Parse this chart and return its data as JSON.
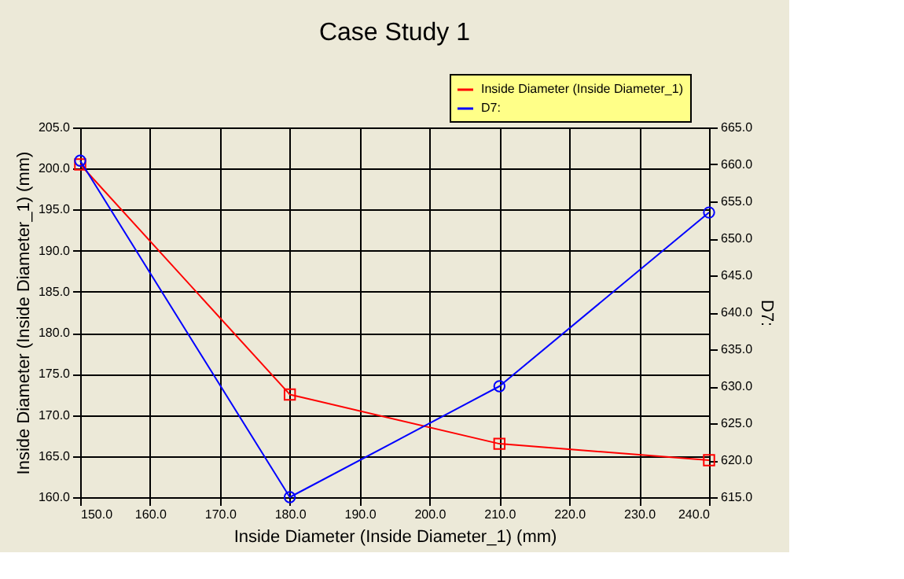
{
  "chart_data": {
    "type": "line",
    "title": "Case Study 1",
    "xlabel": "Inside Diameter (Inside Diameter_1) (mm)",
    "ylabel": "Inside Diameter (Inside Diameter_1) (mm)",
    "y2label": "D7:",
    "x": [
      150,
      180,
      210,
      240
    ],
    "series": [
      {
        "name": "Inside Diameter (Inside Diameter_1)",
        "color": "#ff0000",
        "marker": "square",
        "values": [
          200.5,
          172.5,
          166.5,
          164.5
        ]
      },
      {
        "name": "D7:",
        "color": "#0000ff",
        "marker": "circle",
        "axis": "y2",
        "values": [
          660.5,
          615.0,
          630.0,
          653.5
        ]
      }
    ],
    "xlim": [
      150,
      240
    ],
    "xticks": [
      {
        "value": 150,
        "label": "150.0"
      },
      {
        "value": 160,
        "label": "160.0"
      },
      {
        "value": 170,
        "label": "170.0"
      },
      {
        "value": 180,
        "label": "180.0"
      },
      {
        "value": 190,
        "label": "190.0"
      },
      {
        "value": 200,
        "label": "200.0"
      },
      {
        "value": 210,
        "label": "210.0"
      },
      {
        "value": 220,
        "label": "220.0"
      },
      {
        "value": 230,
        "label": "230.0"
      },
      {
        "value": 240,
        "label": "240.0"
      }
    ],
    "ylim": [
      160,
      205
    ],
    "yticks": [
      {
        "value": 160,
        "label": "160.0"
      },
      {
        "value": 165,
        "label": "165.0"
      },
      {
        "value": 170,
        "label": "170.0"
      },
      {
        "value": 175,
        "label": "175.0"
      },
      {
        "value": 180,
        "label": "180.0"
      },
      {
        "value": 185,
        "label": "185.0"
      },
      {
        "value": 190,
        "label": "190.0"
      },
      {
        "value": 195,
        "label": "195.0"
      },
      {
        "value": 200,
        "label": "200.0"
      },
      {
        "value": 205,
        "label": "205.0"
      }
    ],
    "y2lim": [
      615,
      665
    ],
    "y2ticks": [
      {
        "value": 615,
        "label": "615.0"
      },
      {
        "value": 620,
        "label": "620.0"
      },
      {
        "value": 625,
        "label": "625.0"
      },
      {
        "value": 630,
        "label": "630.0"
      },
      {
        "value": 635,
        "label": "635.0"
      },
      {
        "value": 640,
        "label": "640.0"
      },
      {
        "value": 645,
        "label": "645.0"
      },
      {
        "value": 650,
        "label": "650.0"
      },
      {
        "value": 655,
        "label": "655.0"
      },
      {
        "value": 660,
        "label": "660.0"
      },
      {
        "value": 665,
        "label": "665.0"
      }
    ],
    "grid": true,
    "legend": "top right",
    "line_style": "solid"
  }
}
